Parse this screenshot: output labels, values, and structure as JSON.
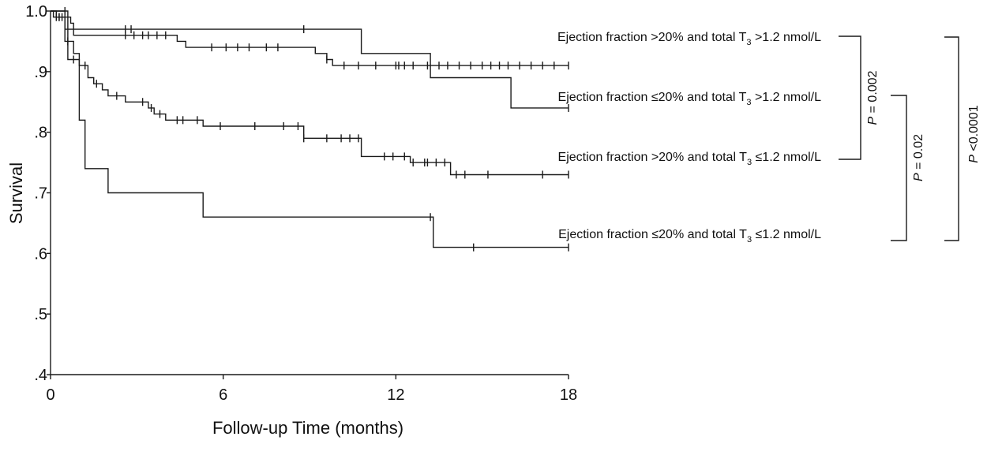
{
  "chart_data": {
    "type": "line",
    "subtype": "kaplan-meier step",
    "title": "",
    "xlabel": "Follow-up Time (months)",
    "ylabel": "Survival",
    "xlim": [
      0,
      18
    ],
    "ylim": [
      0.4,
      1.0
    ],
    "x_ticks": [
      0,
      6,
      12,
      18
    ],
    "x_tick_labels": [
      "0",
      "6",
      "12",
      "18"
    ],
    "y_ticks": [
      0.4,
      0.5,
      0.6,
      0.7,
      0.8,
      0.9,
      1.0
    ],
    "y_tick_labels": [
      ".4",
      ".5",
      ".6",
      ".7",
      ".8",
      ".9",
      "1.0"
    ],
    "grid": false,
    "legend_placement": "inline-right",
    "line_color": "#1a1a1a",
    "series": [
      {
        "name": "Ejection fraction >20% and total T3 >1.2 nmol/L",
        "label_main": "Ejection fraction >20% and total T",
        "label_sub": "3",
        "label_tail": " >1.2 nmol/L",
        "steps": [
          [
            0,
            1.0
          ],
          [
            0.5,
            0.97
          ],
          [
            10.8,
            0.93
          ],
          [
            13.2,
            0.89
          ],
          [
            16.0,
            0.84
          ],
          [
            18,
            0.84
          ]
        ],
        "censors": [
          2.6,
          2.8,
          8.8,
          18
        ]
      },
      {
        "name": "Ejection fraction ≤20% and total T3 >1.2 nmol/L",
        "label_main": "Ejection fraction ≤20% and total T",
        "label_sub": "3",
        "label_tail": " >1.2 nmol/L",
        "steps": [
          [
            0,
            1.0
          ],
          [
            0.1,
            0.99
          ],
          [
            0.7,
            0.98
          ],
          [
            0.8,
            0.96
          ],
          [
            4.4,
            0.95
          ],
          [
            4.7,
            0.94
          ],
          [
            9.2,
            0.93
          ],
          [
            9.6,
            0.92
          ],
          [
            9.8,
            0.91
          ],
          [
            18,
            0.91
          ]
        ],
        "censors": [
          0.2,
          0.3,
          0.4,
          2.6,
          2.9,
          3.2,
          3.4,
          3.7,
          4.0,
          5.6,
          6.1,
          6.5,
          6.9,
          7.5,
          7.9,
          9.6,
          10.2,
          10.7,
          11.3,
          12.0,
          12.1,
          12.3,
          12.6,
          13.1,
          13.5,
          13.8,
          14.2,
          14.6,
          15.0,
          15.3,
          15.6,
          15.9,
          16.3,
          16.7,
          17.1,
          17.5,
          18
        ]
      },
      {
        "name": "Ejection fraction >20% and total T3 ≤1.2 nmol/L",
        "label_main": "Ejection fraction >20% and total T",
        "label_sub": "3",
        "label_tail": " ≤1.2 nmol/L",
        "steps": [
          [
            0,
            1.0
          ],
          [
            0.2,
            0.99
          ],
          [
            0.5,
            0.95
          ],
          [
            0.8,
            0.93
          ],
          [
            1.0,
            0.91
          ],
          [
            1.3,
            0.89
          ],
          [
            1.5,
            0.88
          ],
          [
            1.8,
            0.87
          ],
          [
            2.0,
            0.86
          ],
          [
            2.6,
            0.85
          ],
          [
            3.4,
            0.84
          ],
          [
            3.6,
            0.83
          ],
          [
            4.0,
            0.82
          ],
          [
            5.3,
            0.81
          ],
          [
            8.8,
            0.79
          ],
          [
            10.8,
            0.76
          ],
          [
            12.5,
            0.75
          ],
          [
            13.9,
            0.73
          ],
          [
            18,
            0.73
          ]
        ],
        "censors": [
          0.3,
          0.6,
          1.2,
          1.6,
          2.3,
          3.2,
          3.5,
          3.8,
          4.4,
          4.6,
          5.1,
          5.9,
          7.1,
          8.1,
          8.6,
          8.8,
          9.6,
          10.1,
          10.4,
          10.7,
          11.6,
          11.9,
          12.3,
          12.6,
          13.0,
          13.1,
          13.4,
          13.7,
          14.1,
          14.4,
          15.2,
          17.1,
          18
        ]
      },
      {
        "name": "Ejection fraction ≤20% and total T3 ≤1.2 nmol/L",
        "label_main": "Ejection fraction ≤20% and total T",
        "label_sub": "3",
        "label_tail": " ≤1.2 nmol/L",
        "steps": [
          [
            0,
            1.0
          ],
          [
            0.6,
            0.92
          ],
          [
            1.0,
            0.82
          ],
          [
            1.2,
            0.74
          ],
          [
            2.0,
            0.7
          ],
          [
            5.3,
            0.66
          ],
          [
            13.3,
            0.61
          ],
          [
            18,
            0.61
          ]
        ],
        "censors": [
          0.5,
          0.8,
          13.2,
          14.7,
          18
        ]
      }
    ],
    "comparisons": [
      {
        "label": "P = 0.002",
        "groups": [
          0,
          2
        ]
      },
      {
        "label": "P = 0.02",
        "groups": [
          1,
          3
        ]
      },
      {
        "label": "P <0.0001",
        "groups": [
          0,
          3
        ]
      }
    ]
  }
}
